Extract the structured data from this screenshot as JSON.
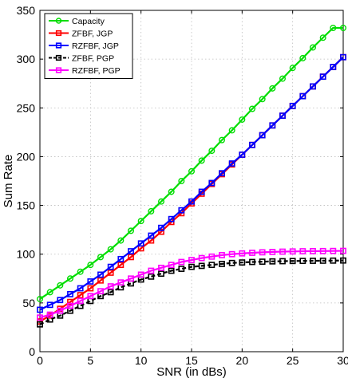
{
  "chart_data": {
    "type": "line",
    "xlabel": "SNR (in dBs)",
    "ylabel": "Sum Rate",
    "xlim": [
      0,
      30
    ],
    "ylim": [
      0,
      350
    ],
    "xticks": [
      0,
      5,
      10,
      15,
      20,
      25,
      30
    ],
    "yticks": [
      0,
      50,
      100,
      150,
      200,
      250,
      300,
      350
    ],
    "grid": true,
    "legend_position": "top-left",
    "x": [
      0,
      1,
      2,
      3,
      4,
      5,
      6,
      7,
      8,
      9,
      10,
      11,
      12,
      13,
      14,
      15,
      16,
      17,
      18,
      19,
      20,
      21,
      22,
      23,
      24,
      25,
      26,
      27,
      28,
      29,
      30
    ],
    "series": [
      {
        "name": "Capacity",
        "color": "#00dd00",
        "marker": "circle",
        "line": "solid",
        "values": [
          54,
          61,
          68,
          75,
          82,
          89,
          97,
          105,
          114,
          124,
          134,
          144,
          154,
          164,
          175,
          185,
          196,
          206,
          217,
          227,
          238,
          249,
          259,
          270,
          280,
          291,
          301,
          312,
          322,
          332,
          332
        ]
      },
      {
        "name": "ZFBF, JGP",
        "color": "#ff0000",
        "marker": "square",
        "line": "solid",
        "values": [
          31,
          37,
          44,
          51,
          58,
          65,
          73,
          81,
          89,
          97,
          106,
          114,
          123,
          133,
          142,
          152,
          162,
          172,
          182,
          192,
          202,
          212,
          222,
          232,
          242,
          252,
          262,
          272,
          282,
          292,
          302
        ]
      },
      {
        "name": "RZFBF, JGP",
        "color": "#0000ff",
        "marker": "square",
        "line": "solid",
        "values": [
          43,
          48,
          53,
          59,
          65,
          72,
          79,
          87,
          95,
          103,
          111,
          119,
          127,
          136,
          145,
          154,
          164,
          173,
          183,
          193,
          202,
          212,
          222,
          232,
          242,
          252,
          262,
          272,
          282,
          292,
          302
        ]
      },
      {
        "name": "ZFBF, PGP",
        "color": "#000000",
        "marker": "square",
        "line": "dashed",
        "values": [
          28,
          33,
          37,
          42,
          47,
          52,
          57,
          61,
          66,
          70,
          74,
          77,
          80,
          83,
          85,
          87,
          88,
          89,
          90,
          91,
          91.5,
          92,
          92.3,
          92.6,
          92.8,
          93,
          93.1,
          93.2,
          93.3,
          93.4,
          93.5
        ]
      },
      {
        "name": "RZFBF, PGP",
        "color": "#ff00ff",
        "marker": "square",
        "line": "solid",
        "values": [
          35,
          38,
          42,
          47,
          52,
          57,
          62,
          67,
          71,
          75,
          79,
          83,
          86,
          89,
          92,
          94,
          96,
          97.5,
          99,
          100,
          100.8,
          101.4,
          101.9,
          102.3,
          102.6,
          102.8,
          103,
          103.1,
          103.2,
          103.3,
          103.4
        ]
      }
    ]
  }
}
